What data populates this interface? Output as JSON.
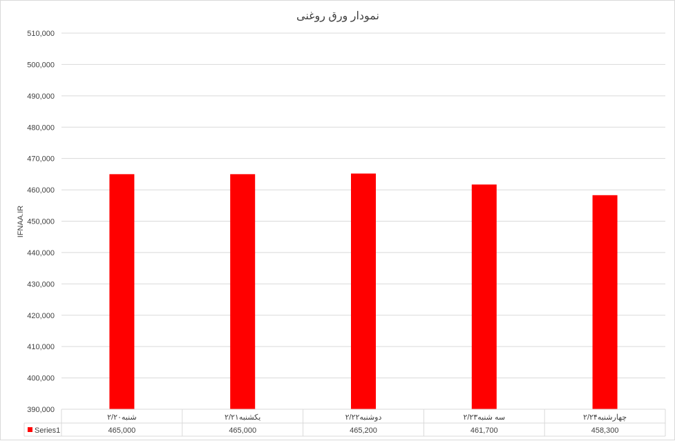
{
  "chart_data": {
    "type": "bar",
    "title": "نمودار ورق روغنی",
    "ylabel": "IFNAA.IR",
    "xlabel": "",
    "categories": [
      "شنبه۲/۲۰",
      "یکشنبه۲/۲۱",
      "دوشنبه۲/۲۲",
      "سه شنبه۲/۲۳",
      "چهارشنبه۲/۲۴"
    ],
    "series": [
      {
        "name": "Series1",
        "values": [
          465000,
          465000,
          465200,
          461700,
          458300
        ],
        "color": "#ff0000"
      }
    ],
    "value_labels": [
      "465,000",
      "465,000",
      "465,200",
      "461,700",
      "458,300"
    ],
    "ylim": [
      390000,
      510000
    ],
    "yticks": [
      "390,000",
      "400,000",
      "410,000",
      "420,000",
      "430,000",
      "440,000",
      "450,000",
      "460,000",
      "470,000",
      "480,000",
      "490,000",
      "500,000",
      "510,000"
    ],
    "grid": true,
    "legend": "data-table"
  }
}
